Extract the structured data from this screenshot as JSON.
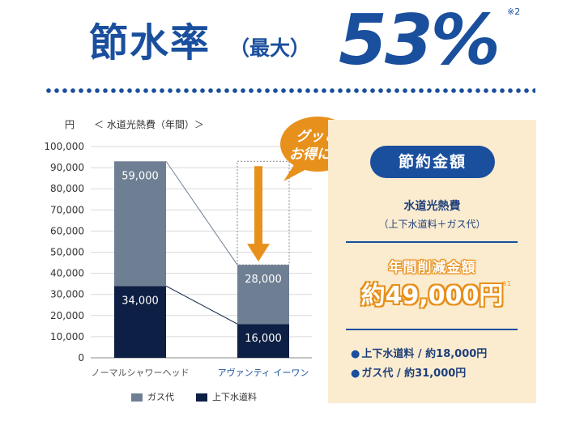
{
  "headline": {
    "main": "節水率",
    "sub": "（最大）",
    "value": "53%",
    "note": "※2"
  },
  "chart_data": {
    "type": "bar",
    "stacked": true,
    "unit_label": "円",
    "subtitle": "＜ 水道光熱費（年間）＞",
    "categories": [
      "ノーマルシャワーヘッド",
      "アヴァンティ イーワン"
    ],
    "series": [
      {
        "name": "上下水道料",
        "color": "#0e1f45",
        "values": [
          34000,
          16000
        ]
      },
      {
        "name": "ガス代",
        "color": "#6f7f93",
        "values": [
          59000,
          28000
        ]
      }
    ],
    "bar_labels": [
      {
        "series": "ガス代",
        "values": [
          "59,000",
          "28,000"
        ]
      },
      {
        "series": "上下水道料",
        "values": [
          "34,000",
          "16,000"
        ]
      }
    ],
    "yticks": [
      "0",
      "10,000",
      "20,000",
      "30,000",
      "40,000",
      "50,000",
      "60,000",
      "70,000",
      "80,000",
      "90,000",
      "100,000"
    ],
    "ylim": [
      0,
      100000
    ],
    "legend": [
      {
        "label": "ガス代",
        "color": "#6f7f93"
      },
      {
        "label": "上下水道料",
        "color": "#0e1f45"
      }
    ],
    "legend_position": "bottom",
    "grid": true
  },
  "callout": {
    "line1": "グッと",
    "line2": "お得に！",
    "color": "#e8901c"
  },
  "panel": {
    "heading": "節約金額",
    "title": "水道光熱費",
    "subtitle": "（上下水道料＋ガス代）",
    "reduction_label": "年間削減金額",
    "amount": "約49,000円",
    "amount_note": "※1",
    "bullets": [
      "上下水道料 / 約18,000円",
      "ガス代 / 約31,000円"
    ]
  }
}
